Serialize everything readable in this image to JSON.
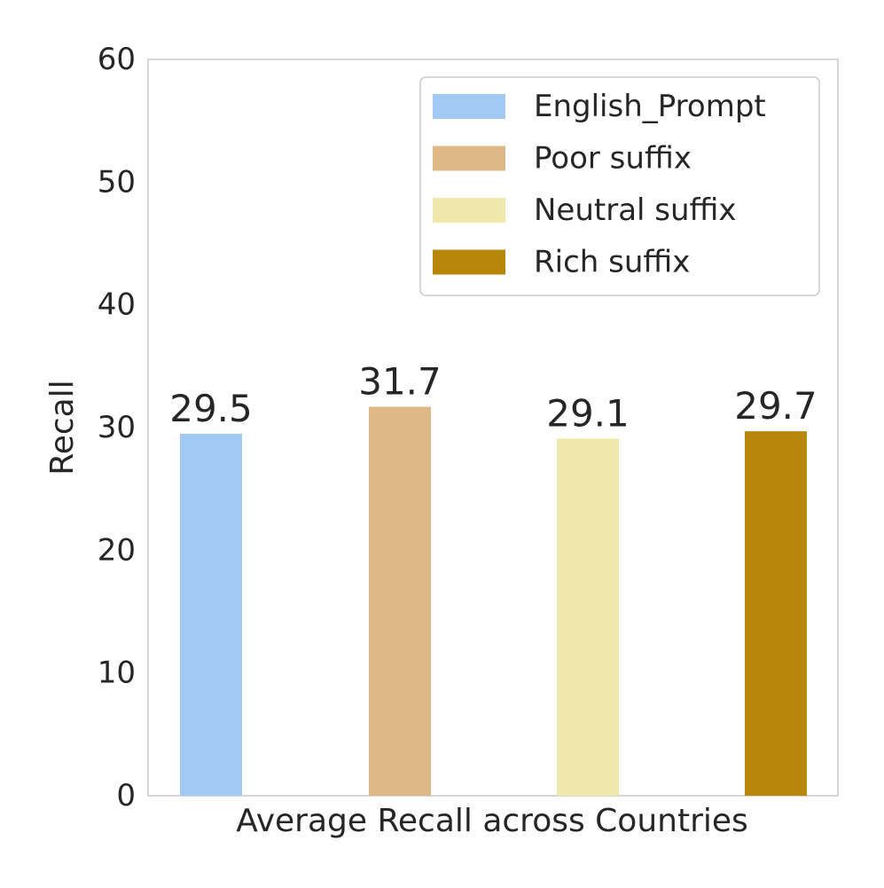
{
  "chart_data": {
    "type": "bar",
    "categories": [
      "Average Recall across Countries"
    ],
    "series": [
      {
        "name": "English_Prompt",
        "values": [
          29.5
        ],
        "color": "#a1c9f4"
      },
      {
        "name": "Poor suffix",
        "values": [
          31.7
        ],
        "color": "#deb887"
      },
      {
        "name": "Neutral suffix",
        "values": [
          29.1
        ],
        "color": "#eee8aa"
      },
      {
        "name": "Rich suffix",
        "values": [
          29.7
        ],
        "color": "#b8860b"
      }
    ],
    "title": "",
    "xlabel": "Average Recall across Countries",
    "ylabel": "Recall",
    "ylim": [
      0,
      60
    ],
    "yticks": [
      "0",
      "10",
      "20",
      "30",
      "40",
      "50",
      "60"
    ],
    "data_labels": [
      "29.5",
      "31.7",
      "29.1",
      "29.7"
    ],
    "grid": false,
    "legend_position": "top-right"
  }
}
